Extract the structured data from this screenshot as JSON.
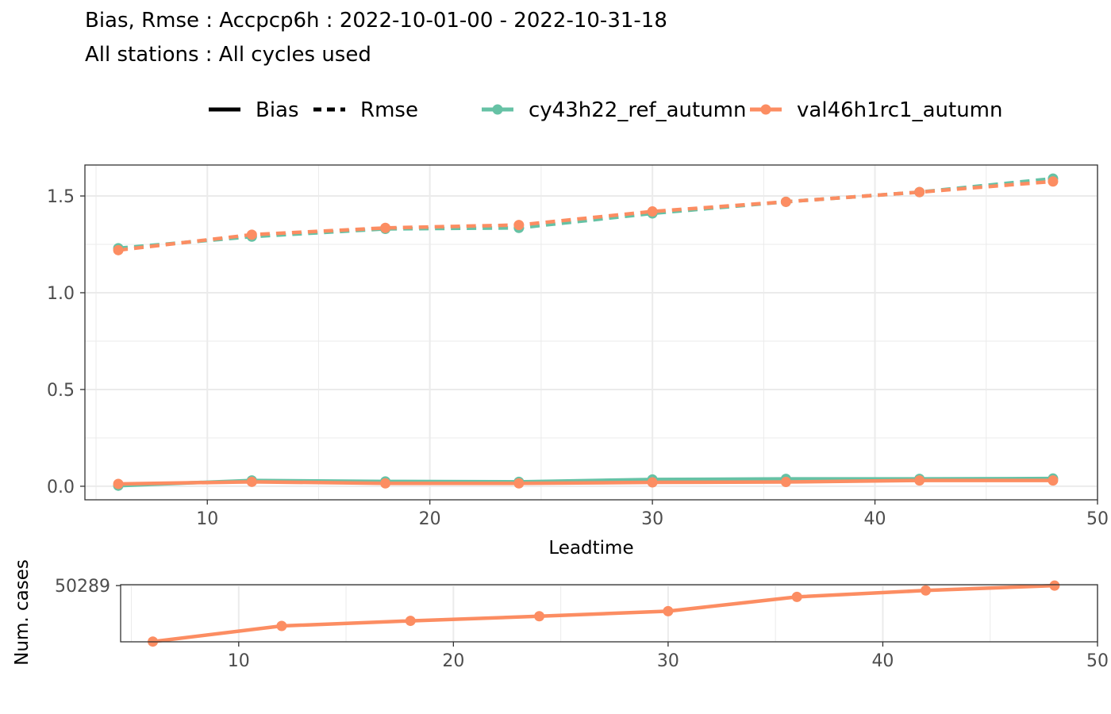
{
  "chart_data": [
    {
      "type": "line",
      "title": "Bias, Rmse : Accpcp6h : 2022-10-01-00 - 2022-10-31-18",
      "subtitle": "All stations : All cycles used",
      "xlabel": "Leadtime",
      "ylabel": "",
      "xlim": [
        4.5,
        50
      ],
      "ylim": [
        -0.07,
        1.66
      ],
      "x_ticks": [
        "10",
        "20",
        "30",
        "40",
        "50"
      ],
      "y_ticks": [
        "0.0",
        "0.5",
        "1.0",
        "1.5"
      ],
      "grid": true,
      "legend": {
        "placement": "top",
        "linetypes": [
          "Bias",
          "Rmse"
        ],
        "models": [
          "cy43h22_ref_autumn",
          "val46h1rc1_autumn"
        ]
      },
      "x": [
        6,
        12,
        18,
        24,
        30,
        36,
        42,
        48
      ],
      "series": [
        {
          "name": "cy43h22_ref_autumn",
          "metric": "Bias",
          "linestyle": "solid",
          "color": "#66c2a5",
          "values": [
            0.003,
            0.03,
            0.025,
            0.023,
            0.035,
            0.038,
            0.038,
            0.04
          ]
        },
        {
          "name": "val46h1rc1_autumn",
          "metric": "Bias",
          "linestyle": "solid",
          "color": "#fc8d62",
          "values": [
            0.012,
            0.023,
            0.015,
            0.015,
            0.02,
            0.022,
            0.03,
            0.03
          ]
        },
        {
          "name": "cy43h22_ref_autumn",
          "metric": "Rmse",
          "linestyle": "dashed",
          "color": "#66c2a5",
          "values": [
            1.23,
            1.29,
            1.33,
            1.335,
            1.41,
            1.47,
            1.52,
            1.59
          ]
        },
        {
          "name": "val46h1rc1_autumn",
          "metric": "Rmse",
          "linestyle": "dashed",
          "color": "#fc8d62",
          "values": [
            1.22,
            1.3,
            1.335,
            1.35,
            1.42,
            1.47,
            1.52,
            1.575
          ]
        }
      ]
    },
    {
      "type": "line",
      "title": "",
      "xlabel": "",
      "ylabel": "Num. cases",
      "xlim": [
        4.5,
        50
      ],
      "ylim": [
        50045,
        50293
      ],
      "x_ticks": [
        "10",
        "20",
        "30",
        "40",
        "50"
      ],
      "y_ticks": [
        "50289"
      ],
      "grid": true,
      "x": [
        6,
        12,
        18,
        24,
        30,
        36,
        42,
        48
      ],
      "series": [
        {
          "name": "val46h1rc1_autumn",
          "color": "#fc8d62",
          "values": [
            50046,
            50114,
            50136,
            50156,
            50178,
            50240,
            50268,
            50289
          ]
        }
      ]
    }
  ]
}
